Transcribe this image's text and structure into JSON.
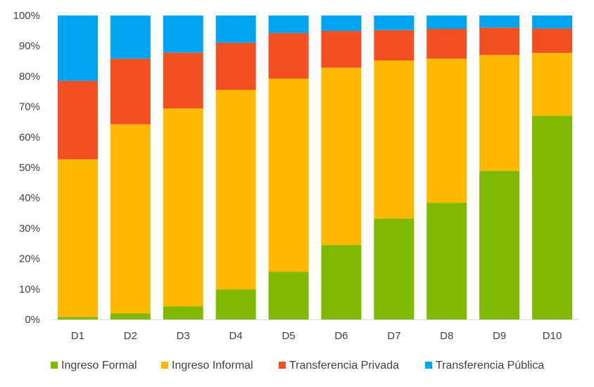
{
  "chart_data": {
    "type": "bar",
    "stacked": true,
    "percent": true,
    "categories": [
      "D1",
      "D2",
      "D3",
      "D4",
      "D5",
      "D6",
      "D7",
      "D8",
      "D9",
      "D10"
    ],
    "series": [
      {
        "name": "Ingreso Formal",
        "color": "#7FBA00",
        "values": [
          0.8,
          2.0,
          4.3,
          9.9,
          15.7,
          24.5,
          33.1,
          38.4,
          48.9,
          67.0
        ]
      },
      {
        "name": "Ingreso Informal",
        "color": "#FFB900",
        "values": [
          51.9,
          62.2,
          65.1,
          65.6,
          63.5,
          58.3,
          52.1,
          47.4,
          38.1,
          20.7
        ]
      },
      {
        "name": "Transferencia Privada",
        "color": "#F25022",
        "values": [
          25.8,
          21.6,
          18.4,
          15.5,
          15.0,
          12.1,
          10.0,
          9.8,
          9.0,
          8.0
        ]
      },
      {
        "name": "Transferencia Pública",
        "color": "#00A4EF",
        "values": [
          21.5,
          14.2,
          12.2,
          9.0,
          5.8,
          5.1,
          4.8,
          4.4,
          4.0,
          4.3
        ]
      }
    ],
    "yticks": [
      "0%",
      "10%",
      "20%",
      "30%",
      "40%",
      "50%",
      "60%",
      "70%",
      "80%",
      "90%",
      "100%"
    ],
    "ylim": [
      0,
      100
    ],
    "title": "",
    "xlabel": "",
    "ylabel": "",
    "grid": false,
    "legend": "bottom"
  }
}
